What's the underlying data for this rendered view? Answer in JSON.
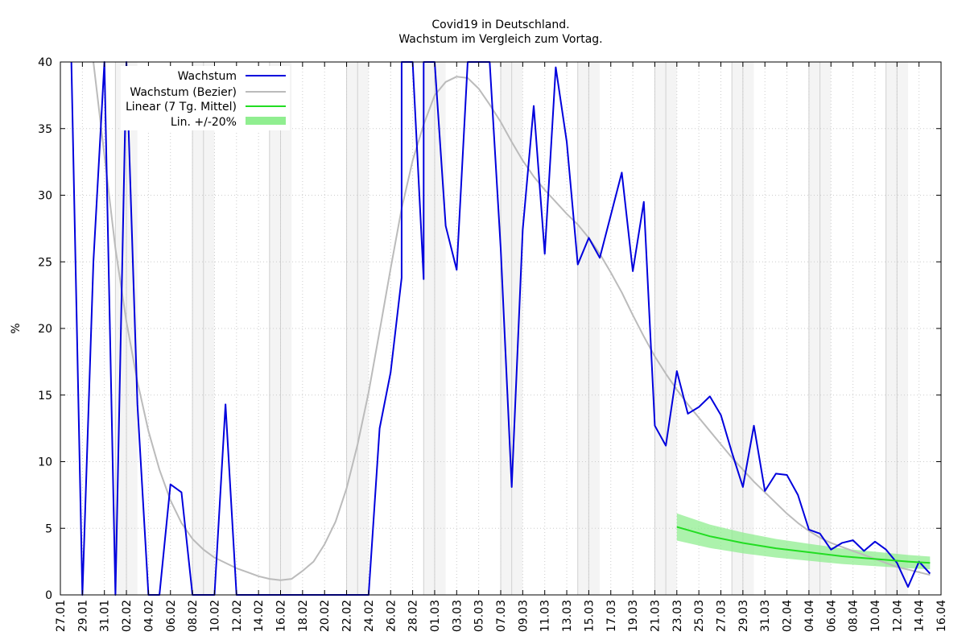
{
  "chart_data": {
    "type": "line",
    "title": "Covid19 in Deutschland.",
    "subtitle": "Wachstum im Vergleich zum Vortag.",
    "ylabel": "%",
    "ylim": [
      0,
      40
    ],
    "yticks": [
      0,
      5,
      10,
      15,
      20,
      25,
      30,
      35,
      40
    ],
    "x_start": "2020-01-27",
    "xtick_labels": [
      "27.01",
      "29.01",
      "31.01",
      "02.02",
      "04.02",
      "06.02",
      "08.02",
      "10.02",
      "12.02",
      "14.02",
      "16.02",
      "18.02",
      "20.02",
      "22.02",
      "24.02",
      "26.02",
      "28.02",
      "01.03",
      "03.03",
      "05.03",
      "07.03",
      "09.03",
      "11.03",
      "13.03",
      "15.03",
      "17.03",
      "19.03",
      "21.03",
      "23.03",
      "25.03",
      "27.03",
      "29.03",
      "31.03",
      "02.04",
      "04.04",
      "06.04",
      "08.04",
      "10.04",
      "12.04",
      "14.04",
      "16.04"
    ],
    "legend_position": "top-left",
    "grid": true,
    "weekend_shading": true,
    "series": [
      {
        "name": "Wachstum",
        "color": "#0000dd",
        "points": [
          [
            "2020-01-28",
            40
          ],
          [
            "2020-01-29",
            0
          ],
          [
            "2020-01-30",
            25
          ],
          [
            "2020-01-31",
            40
          ],
          [
            "2020-02-01",
            0
          ],
          [
            "2020-02-02",
            40
          ],
          [
            "2020-02-03",
            14.3
          ],
          [
            "2020-02-04",
            0
          ],
          [
            "2020-02-05",
            0
          ],
          [
            "2020-02-06",
            8.3
          ],
          [
            "2020-02-07",
            7.7
          ],
          [
            "2020-02-08",
            0
          ],
          [
            "2020-02-09",
            0
          ],
          [
            "2020-02-10",
            0
          ],
          [
            "2020-02-11",
            14.3
          ],
          [
            "2020-02-12",
            0
          ],
          [
            "2020-02-13",
            0
          ],
          [
            "2020-02-14",
            0
          ],
          [
            "2020-02-15",
            0
          ],
          [
            "2020-02-16",
            0
          ],
          [
            "2020-02-17",
            0
          ],
          [
            "2020-02-18",
            0
          ],
          [
            "2020-02-19",
            0
          ],
          [
            "2020-02-20",
            0
          ],
          [
            "2020-02-21",
            0
          ],
          [
            "2020-02-22",
            0
          ],
          [
            "2020-02-23",
            0
          ],
          [
            "2020-02-24",
            0
          ],
          [
            "2020-02-25",
            12.5
          ],
          [
            "2020-02-26",
            16.7
          ],
          [
            "2020-02-27",
            23.8
          ],
          [
            "2020-02-27",
            40
          ],
          [
            "2020-02-28",
            40
          ],
          [
            "2020-02-28",
            40
          ],
          [
            "2020-02-29",
            23.7
          ],
          [
            "2020-02-29",
            40
          ],
          [
            "2020-03-01",
            40
          ],
          [
            "2020-03-02",
            27.7
          ],
          [
            "2020-03-03",
            24.4
          ],
          [
            "2020-03-04",
            40
          ],
          [
            "2020-03-05",
            40
          ],
          [
            "2020-03-06",
            40
          ],
          [
            "2020-03-07",
            26
          ],
          [
            "2020-03-08",
            8.1
          ],
          [
            "2020-03-09",
            27.4
          ],
          [
            "2020-03-10",
            36.7
          ],
          [
            "2020-03-11",
            25.6
          ],
          [
            "2020-03-12",
            39.6
          ],
          [
            "2020-03-13",
            34
          ],
          [
            "2020-03-14",
            24.8
          ],
          [
            "2020-03-15",
            26.8
          ],
          [
            "2020-03-16",
            25.3
          ],
          [
            "2020-03-17",
            28.5
          ],
          [
            "2020-03-18",
            31.7
          ],
          [
            "2020-03-19",
            24.3
          ],
          [
            "2020-03-20",
            29.5
          ],
          [
            "2020-03-21",
            12.7
          ],
          [
            "2020-03-22",
            11.2
          ],
          [
            "2020-03-23",
            16.8
          ],
          [
            "2020-03-24",
            13.6
          ],
          [
            "2020-03-25",
            14.1
          ],
          [
            "2020-03-26",
            14.9
          ],
          [
            "2020-03-27",
            13.5
          ],
          [
            "2020-03-28",
            10.7
          ],
          [
            "2020-03-29",
            8.1
          ],
          [
            "2020-03-30",
            12.7
          ],
          [
            "2020-03-31",
            7.8
          ],
          [
            "2020-04-01",
            9.1
          ],
          [
            "2020-04-02",
            9.0
          ],
          [
            "2020-04-03",
            7.5
          ],
          [
            "2020-04-04",
            4.9
          ],
          [
            "2020-04-05",
            4.6
          ],
          [
            "2020-04-06",
            3.4
          ],
          [
            "2020-04-07",
            3.9
          ],
          [
            "2020-04-08",
            4.1
          ],
          [
            "2020-04-09",
            3.3
          ],
          [
            "2020-04-10",
            4.0
          ],
          [
            "2020-04-11",
            3.4
          ],
          [
            "2020-04-12",
            2.4
          ],
          [
            "2020-04-13",
            0.6
          ],
          [
            "2020-04-14",
            2.5
          ],
          [
            "2020-04-15",
            1.6
          ]
        ]
      },
      {
        "name": "Wachstum (Bezier)",
        "color": "#bbbbbb",
        "points": [
          [
            "2020-01-30",
            40
          ],
          [
            "2020-01-31",
            33
          ],
          [
            "2020-02-01",
            26
          ],
          [
            "2020-02-02",
            20.5
          ],
          [
            "2020-02-03",
            16
          ],
          [
            "2020-02-04",
            12.3
          ],
          [
            "2020-02-05",
            9.4
          ],
          [
            "2020-02-06",
            7.1
          ],
          [
            "2020-02-07",
            5.4
          ],
          [
            "2020-02-08",
            4.2
          ],
          [
            "2020-02-09",
            3.4
          ],
          [
            "2020-02-10",
            2.8
          ],
          [
            "2020-02-11",
            2.4
          ],
          [
            "2020-02-12",
            2.0
          ],
          [
            "2020-02-13",
            1.7
          ],
          [
            "2020-02-14",
            1.4
          ],
          [
            "2020-02-15",
            1.2
          ],
          [
            "2020-02-16",
            1.1
          ],
          [
            "2020-02-17",
            1.2
          ],
          [
            "2020-02-18",
            1.8
          ],
          [
            "2020-02-19",
            2.5
          ],
          [
            "2020-02-20",
            3.8
          ],
          [
            "2020-02-21",
            5.5
          ],
          [
            "2020-02-22",
            8.0
          ],
          [
            "2020-02-23",
            11.3
          ],
          [
            "2020-02-24",
            15.2
          ],
          [
            "2020-02-25",
            19.8
          ],
          [
            "2020-02-26",
            24.5
          ],
          [
            "2020-02-27",
            29.0
          ],
          [
            "2020-02-28",
            32.6
          ],
          [
            "2020-02-29",
            35.3
          ],
          [
            "2020-03-01",
            37.5
          ],
          [
            "2020-03-02",
            38.5
          ],
          [
            "2020-03-03",
            38.9
          ],
          [
            "2020-03-04",
            38.8
          ],
          [
            "2020-03-05",
            38.0
          ],
          [
            "2020-03-06",
            36.8
          ],
          [
            "2020-03-07",
            35.5
          ],
          [
            "2020-03-08",
            34.0
          ],
          [
            "2020-03-09",
            32.6
          ],
          [
            "2020-03-10",
            31.4
          ],
          [
            "2020-03-11",
            30.4
          ],
          [
            "2020-03-12",
            29.5
          ],
          [
            "2020-03-13",
            28.6
          ],
          [
            "2020-03-14",
            27.8
          ],
          [
            "2020-03-15",
            26.8
          ],
          [
            "2020-03-16",
            25.6
          ],
          [
            "2020-03-17",
            24.2
          ],
          [
            "2020-03-18",
            22.7
          ],
          [
            "2020-03-19",
            21.0
          ],
          [
            "2020-03-20",
            19.4
          ],
          [
            "2020-03-21",
            17.9
          ],
          [
            "2020-03-22",
            16.6
          ],
          [
            "2020-03-23",
            15.4
          ],
          [
            "2020-03-24",
            14.3
          ],
          [
            "2020-03-25",
            13.3
          ],
          [
            "2020-03-26",
            12.3
          ],
          [
            "2020-03-27",
            11.3
          ],
          [
            "2020-03-28",
            10.3
          ],
          [
            "2020-03-29",
            9.4
          ],
          [
            "2020-03-30",
            8.5
          ],
          [
            "2020-03-31",
            7.7
          ],
          [
            "2020-04-01",
            6.9
          ],
          [
            "2020-04-02",
            6.1
          ],
          [
            "2020-04-03",
            5.4
          ],
          [
            "2020-04-04",
            4.8
          ],
          [
            "2020-04-05",
            4.3
          ],
          [
            "2020-04-06",
            3.9
          ],
          [
            "2020-04-07",
            3.6
          ],
          [
            "2020-04-08",
            3.3
          ],
          [
            "2020-04-09",
            3.0
          ],
          [
            "2020-04-10",
            2.7
          ],
          [
            "2020-04-11",
            2.4
          ],
          [
            "2020-04-12",
            2.1
          ],
          [
            "2020-04-13",
            1.9
          ],
          [
            "2020-04-14",
            1.7
          ],
          [
            "2020-04-15",
            1.5
          ]
        ]
      },
      {
        "name": "Linear (7 Tg. Mittel)",
        "color": "#22dd22",
        "points": [
          [
            "2020-03-23",
            5.1
          ],
          [
            "2020-03-26",
            4.4
          ],
          [
            "2020-03-29",
            3.9
          ],
          [
            "2020-04-01",
            3.5
          ],
          [
            "2020-04-04",
            3.2
          ],
          [
            "2020-04-07",
            2.9
          ],
          [
            "2020-04-10",
            2.7
          ],
          [
            "2020-04-13",
            2.5
          ],
          [
            "2020-04-15",
            2.4
          ]
        ]
      }
    ],
    "band": {
      "name": "Lin. +/-20%",
      "color": "#90ee90",
      "relative_width": 0.2
    }
  }
}
